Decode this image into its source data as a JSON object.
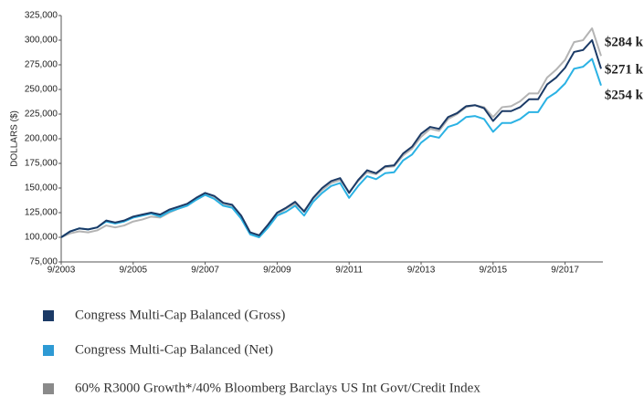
{
  "chart_data": {
    "type": "line",
    "y_axis_label": "DOLLARS ($)",
    "categories": [
      "9/2003",
      null,
      null,
      null,
      null,
      null,
      null,
      null,
      "9/2005",
      null,
      null,
      null,
      null,
      null,
      null,
      null,
      "9/2007",
      null,
      null,
      null,
      null,
      null,
      null,
      null,
      "9/2009",
      null,
      null,
      null,
      null,
      null,
      null,
      null,
      "9/2011",
      null,
      null,
      null,
      null,
      null,
      null,
      null,
      "9/2013",
      null,
      null,
      null,
      null,
      null,
      null,
      null,
      "9/2015",
      null,
      null,
      null,
      null,
      null,
      null,
      null,
      "9/2017",
      null,
      null,
      null,
      null
    ],
    "ylim": [
      75000,
      325000
    ],
    "yticks": [
      {
        "value": 75000,
        "label": "75,000"
      },
      {
        "value": 100000,
        "label": "100,000"
      },
      {
        "value": 125000,
        "label": "125,000"
      },
      {
        "value": 150000,
        "label": "150,000"
      },
      {
        "value": 175000,
        "label": "175,000"
      },
      {
        "value": 200000,
        "label": "200,000"
      },
      {
        "value": 225000,
        "label": "225,000"
      },
      {
        "value": 250000,
        "label": "250,000"
      },
      {
        "value": 275000,
        "label": "275,000"
      },
      {
        "value": 300000,
        "label": "300,000"
      },
      {
        "value": 325000,
        "label": "325,000"
      }
    ],
    "grid": false,
    "series": [
      {
        "name": "Congress Multi-Cap Balanced  (Gross)",
        "color": "#1b3a66",
        "legend_color": "#1b3a66",
        "values": [
          100000,
          106000,
          109000,
          108000,
          110000,
          117000,
          115000,
          117000,
          121000,
          123000,
          125000,
          123000,
          128000,
          131000,
          134000,
          140000,
          145000,
          142000,
          135000,
          133000,
          122000,
          105000,
          102000,
          113000,
          125000,
          130000,
          136000,
          126000,
          140000,
          150000,
          157000,
          160000,
          145000,
          158000,
          168000,
          165000,
          172000,
          173000,
          185000,
          192000,
          205000,
          212000,
          210000,
          222000,
          226000,
          233000,
          234000,
          231000,
          218000,
          228000,
          228000,
          232000,
          240000,
          240000,
          255000,
          262000,
          272000,
          288000,
          290000,
          300000,
          271000
        ],
        "value_labels": [
          null,
          null,
          null,
          null,
          null,
          null,
          null,
          null,
          null,
          null,
          null,
          null,
          null,
          null,
          null,
          null,
          null,
          null,
          null,
          null,
          null,
          null,
          null,
          null,
          null,
          null,
          null,
          null,
          null,
          null,
          null,
          null,
          null,
          null,
          null,
          null,
          null,
          null,
          null,
          null,
          null,
          null,
          null,
          null,
          null,
          null,
          null,
          null,
          null,
          null,
          null,
          null,
          null,
          null,
          null,
          null,
          null,
          null,
          null,
          null,
          "$271 k"
        ]
      },
      {
        "name": "Congress Multi-Cap Balanced (Net)",
        "color": "#2bb2e4",
        "legend_color": "#2e9ad4",
        "values": [
          100000,
          106000,
          109000,
          108000,
          110000,
          116000,
          114000,
          116000,
          120000,
          122000,
          124000,
          121000,
          126000,
          129000,
          132000,
          138000,
          143000,
          139000,
          132000,
          130000,
          119000,
          103000,
          100000,
          110000,
          122000,
          126000,
          132000,
          122000,
          136000,
          145000,
          152000,
          155000,
          140000,
          152000,
          162000,
          159000,
          165000,
          166000,
          178000,
          184000,
          196000,
          203000,
          201000,
          212000,
          215000,
          222000,
          223000,
          220000,
          207000,
          216000,
          216000,
          220000,
          227000,
          227000,
          241000,
          247000,
          256000,
          271000,
          273000,
          281000,
          254000
        ],
        "value_labels": [
          null,
          null,
          null,
          null,
          null,
          null,
          null,
          null,
          null,
          null,
          null,
          null,
          null,
          null,
          null,
          null,
          null,
          null,
          null,
          null,
          null,
          null,
          null,
          null,
          null,
          null,
          null,
          null,
          null,
          null,
          null,
          null,
          null,
          null,
          null,
          null,
          null,
          null,
          null,
          null,
          null,
          null,
          null,
          null,
          null,
          null,
          null,
          null,
          null,
          null,
          null,
          null,
          null,
          null,
          null,
          null,
          null,
          null,
          null,
          null,
          "$254 k"
        ]
      },
      {
        "name": "60% R3000 Growth*/40% Bloomberg Barclays US Int Govt/Credit Index",
        "color": "#b4b4b4",
        "legend_color": "#8a8a8a",
        "values": [
          100000,
          104000,
          106000,
          105000,
          107000,
          112000,
          110000,
          112000,
          116000,
          118000,
          121000,
          120000,
          125000,
          129000,
          132000,
          138000,
          143000,
          141000,
          134000,
          131000,
          120000,
          104000,
          101000,
          111000,
          123000,
          129000,
          134000,
          127000,
          139000,
          148000,
          155000,
          158000,
          146000,
          157000,
          166000,
          164000,
          171000,
          172000,
          183000,
          190000,
          202000,
          210000,
          208000,
          220000,
          225000,
          232000,
          234000,
          232000,
          222000,
          232000,
          233000,
          238000,
          246000,
          246000,
          262000,
          270000,
          280000,
          298000,
          300000,
          312000,
          284000
        ],
        "value_labels": [
          null,
          null,
          null,
          null,
          null,
          null,
          null,
          null,
          null,
          null,
          null,
          null,
          null,
          null,
          null,
          null,
          null,
          null,
          null,
          null,
          null,
          null,
          null,
          null,
          null,
          null,
          null,
          null,
          null,
          null,
          null,
          null,
          null,
          null,
          null,
          null,
          null,
          null,
          null,
          null,
          null,
          null,
          null,
          null,
          null,
          null,
          null,
          null,
          null,
          null,
          null,
          null,
          null,
          null,
          null,
          null,
          null,
          null,
          null,
          null,
          "$284 k"
        ]
      }
    ]
  }
}
